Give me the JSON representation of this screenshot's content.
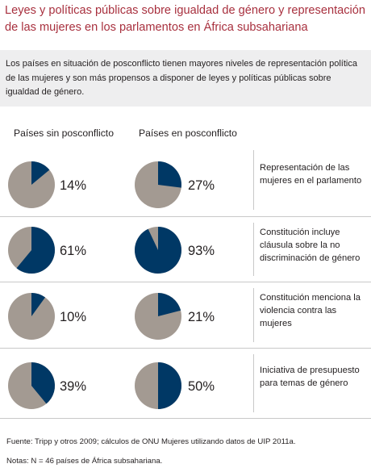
{
  "title": "Leyes y políticas públicas sobre igualdad de género y representación de las mujeres en los parlamentos en África subsahariana",
  "intro": "Los países en situación de posconflicto tienen mayores niveles de representación política de las mujeres y son más propensos a disponer de leyes y políticas públicas sobre igualdad de género.",
  "colors": {
    "title": "#a8303e",
    "navy": "#003865",
    "taupe": "#a39a92",
    "box": "#eeeeef"
  },
  "chart_data": {
    "type": "pie",
    "columns": [
      "Países sin posconflicto",
      "Países en posconflicto"
    ],
    "rows": [
      {
        "label": "Representación de las mujeres en el parlamento",
        "values": [
          14,
          27
        ],
        "value_labels": [
          "14%",
          "27%"
        ]
      },
      {
        "label": "Constitución incluye cláusula sobre la no discriminación de género",
        "values": [
          61,
          93
        ],
        "value_labels": [
          "61%",
          "93%"
        ]
      },
      {
        "label": "Constitución menciona la violencia contra las mujeres",
        "values": [
          10,
          21
        ],
        "value_labels": [
          "10%",
          "21%"
        ]
      },
      {
        "label": "Iniciativa de presupuesto para temas de género",
        "values": [
          39,
          50
        ],
        "value_labels": [
          "39%",
          "50%"
        ]
      }
    ]
  },
  "footer": {
    "source": "Fuente: Tripp y otros 2009; cálculos de ONU Mujeres utilizando datos de UIP 2011a.",
    "notes": "Notas: N = 46 países de África subsahariana."
  }
}
